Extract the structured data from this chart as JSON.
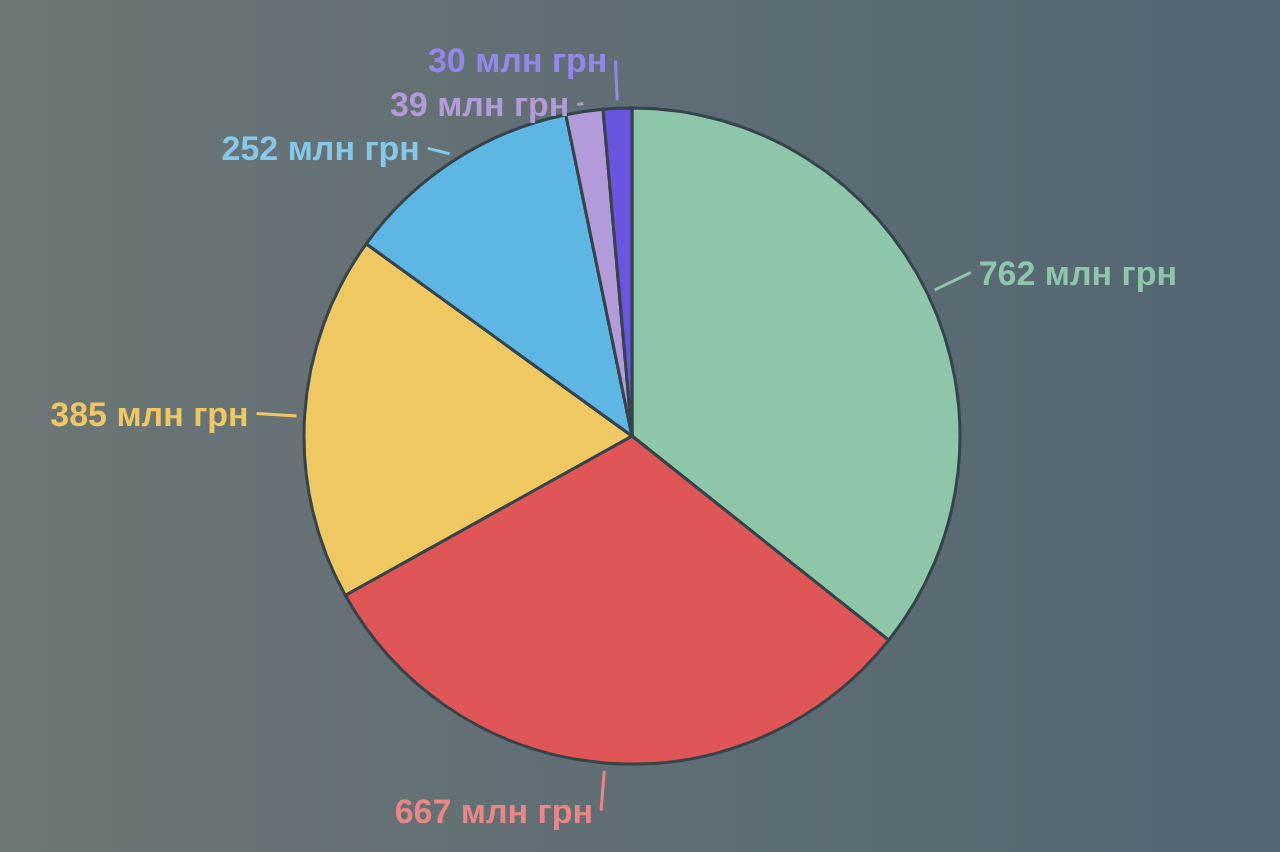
{
  "chart_data": {
    "type": "pie",
    "categories": [
      null,
      null,
      null,
      null,
      null,
      null
    ],
    "values": [
      762,
      667,
      385,
      252,
      39,
      30
    ],
    "colors": [
      "#8ec6a9",
      "#e05555",
      "#efc862",
      "#5db6e3",
      "#b39ad8",
      "#6a55e0"
    ],
    "value_labels": [
      "762 млн грн",
      "667 млн грн",
      "385 млн грн",
      "252 млн грн",
      "39 млн грн",
      "30 млн грн"
    ]
  }
}
